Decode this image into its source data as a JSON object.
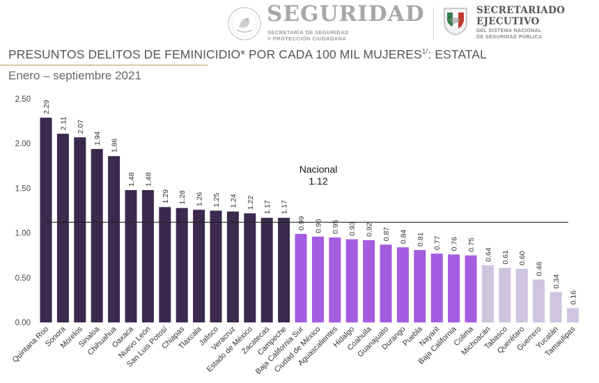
{
  "header": {
    "agency_title": "SEGURIDAD",
    "agency_subtitle_line1": "SECRETARÍA DE SEGURIDAD",
    "agency_subtitle_line2": "Y PROTECCIÓN CIUDADANA",
    "secretariat_title_line1": "SECRETARIADO",
    "secretariat_title_line2": "EJECUTIVO",
    "secretariat_subtitle_line1": "DEL SISTEMA NACIONAL",
    "secretariat_subtitle_line2": "DE SEGURIDAD PÚBLICA"
  },
  "colors": {
    "dark_bar": "#3b2a4d",
    "mid_bar": "#a45ce0",
    "light_bar": "#cfc5df",
    "national_line": "#222222"
  },
  "chart_data": {
    "type": "bar",
    "title": "PRESUNTOS DELITOS DE FEMINICIDIO* POR CADA 100 MIL MUJERES",
    "title_superscript": "1/",
    "title_suffix": ": ESTATAL",
    "subtitle": "Enero – septiembre 2021",
    "xlabel": "",
    "ylabel": "",
    "ylim": [
      0,
      2.5
    ],
    "yticks": [
      "0.00",
      "0.50",
      "1.00",
      "1.50",
      "2.00",
      "2.50"
    ],
    "grid": false,
    "categories": [
      "Quintana Roo",
      "Sonora",
      "Morelos",
      "Sinaloa",
      "Chihuahua",
      "Oaxaca",
      "Nuevo León",
      "San Luis Potosí",
      "Chiapas",
      "Tlaxcala",
      "Jalisco",
      "Veracruz",
      "Estado de México",
      "Zacatecas",
      "Campeche",
      "Baja California Sur",
      "Ciudad de México",
      "Aguascalientes",
      "Hidalgo",
      "Coahuila",
      "Guanajuato",
      "Durango",
      "Puebla",
      "Nayarit",
      "Baja California",
      "Colima",
      "Michoacán",
      "Tabasco",
      "Querétaro",
      "Guerrero",
      "Yucatán",
      "Tamaulipas"
    ],
    "values": [
      2.29,
      2.11,
      2.07,
      1.94,
      1.86,
      1.48,
      1.48,
      1.29,
      1.28,
      1.26,
      1.25,
      1.24,
      1.22,
      1.17,
      1.17,
      0.99,
      0.96,
      0.95,
      0.93,
      0.92,
      0.87,
      0.84,
      0.81,
      0.77,
      0.76,
      0.75,
      0.64,
      0.61,
      0.6,
      0.48,
      0.34,
      0.16
    ],
    "value_labels": [
      "2.29",
      "2.11",
      "2.07",
      "1.94",
      "1.86",
      "1.48",
      "1.48",
      "1.29",
      "1.28",
      "1.26",
      "1.25",
      "1.24",
      "1.22",
      "1.17",
      "1.17",
      "0.99",
      "0.96",
      "0.95",
      "0.93",
      "0.92",
      "0.87",
      "0.84",
      "0.81",
      "0.77",
      "0.76",
      "0.75",
      "0.64",
      "0.61",
      "0.60",
      "0.48",
      "0.34",
      "0.16"
    ],
    "bar_groups": [
      "dark",
      "dark",
      "dark",
      "dark",
      "dark",
      "dark",
      "dark",
      "dark",
      "dark",
      "dark",
      "dark",
      "dark",
      "dark",
      "dark",
      "dark",
      "mid",
      "mid",
      "mid",
      "mid",
      "mid",
      "mid",
      "mid",
      "mid",
      "mid",
      "mid",
      "mid",
      "light",
      "light",
      "light",
      "light",
      "light",
      "light"
    ],
    "reference_line": {
      "label": "Nacional",
      "value": 1.12,
      "value_label": "1.12"
    }
  }
}
